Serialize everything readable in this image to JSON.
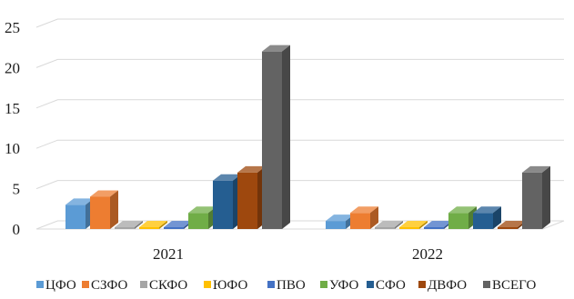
{
  "chart_data": {
    "type": "bar",
    "style": "3d-clustered-column",
    "categories": [
      "2021",
      "2022"
    ],
    "ylim": [
      0,
      25
    ],
    "yticks": [
      "0",
      "5",
      "10",
      "15",
      "20",
      "25"
    ],
    "grid": true,
    "legend_position": "bottom",
    "series": [
      {
        "name": "ЦФО",
        "color": "#5b9bd5",
        "values": [
          3,
          1
        ]
      },
      {
        "name": "СЗФО",
        "color": "#ed7d31",
        "values": [
          4,
          2
        ]
      },
      {
        "name": "СКФО",
        "color": "#a5a5a5",
        "values": [
          0,
          0
        ]
      },
      {
        "name": "ЮФО",
        "color": "#ffc000",
        "values": [
          0,
          0
        ]
      },
      {
        "name": "ПВО",
        "color": "#4472c4",
        "values": [
          0,
          0
        ]
      },
      {
        "name": "УФО",
        "color": "#70ad47",
        "values": [
          2,
          2
        ]
      },
      {
        "name": "СФО",
        "color": "#255e91",
        "values": [
          6,
          2
        ]
      },
      {
        "name": "ДВФО",
        "color": "#9e480e",
        "values": [
          7,
          0
        ]
      },
      {
        "name": "ВСЕГО",
        "color": "#636363",
        "values": [
          22,
          7
        ]
      }
    ]
  }
}
